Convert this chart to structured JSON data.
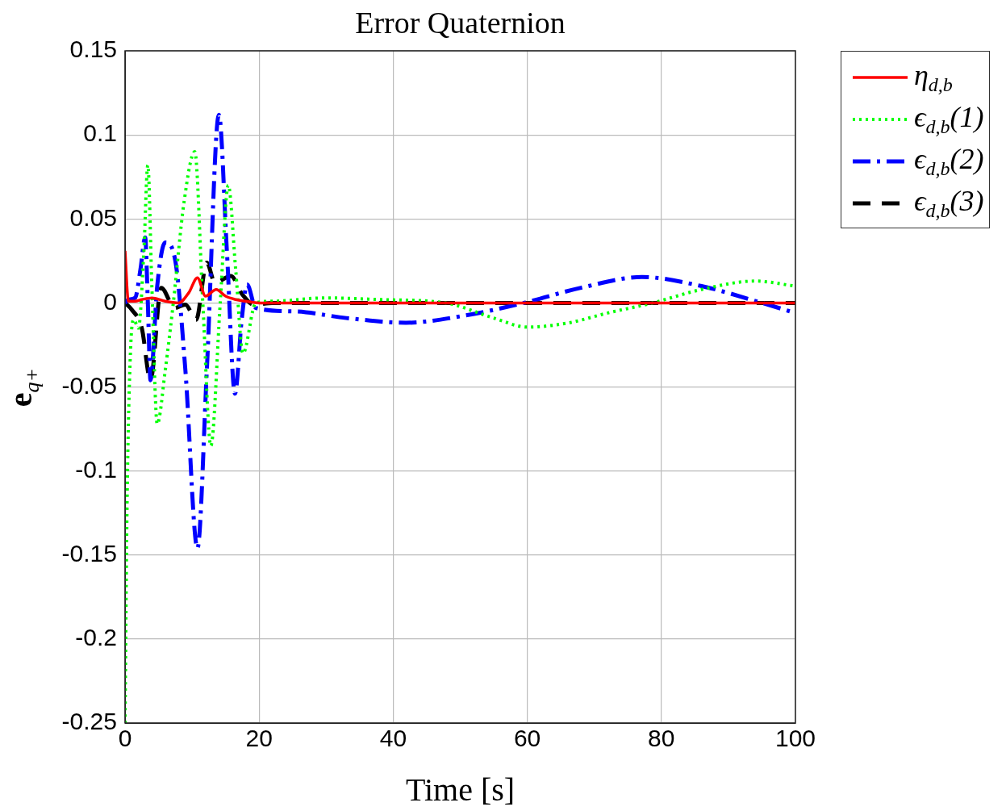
{
  "chart_data": {
    "type": "line",
    "title": "Error Quaternion",
    "xlabel": "Time [s]",
    "ylabel": "e$_{q+}$",
    "xlim": [
      0,
      100
    ],
    "ylim": [
      -0.25,
      0.15
    ],
    "xticks": [
      0,
      20,
      40,
      60,
      80,
      100
    ],
    "yticks": [
      -0.25,
      -0.2,
      -0.15,
      -0.1,
      -0.05,
      0,
      0.05,
      0.1,
      0.15
    ],
    "grid": true,
    "legend": "top right",
    "marker": "none",
    "series": [
      {
        "name": "η$_{d,b}$",
        "color": "#ff0000",
        "line_style": "solid",
        "x": [
          0,
          0.5,
          1.5,
          2.5,
          4,
          6,
          8,
          9.5,
          10.8,
          12,
          13.6,
          15,
          16.5,
          18,
          20,
          40,
          60,
          80,
          100
        ],
        "values": [
          0.031,
          0.001,
          0.001,
          0.002,
          0.003,
          0.001,
          0.0,
          0.006,
          0.015,
          0.004,
          0.008,
          0.004,
          0.002,
          0.001,
          0,
          0,
          0,
          0,
          0
        ]
      },
      {
        "name": "ϵ$_{d,b}$(1)",
        "color": "#00ff00",
        "line_style": "dotted",
        "x": [
          0,
          0.3,
          0.8,
          1.3,
          2,
          2.8,
          3.4,
          4,
          4.8,
          6,
          7.2,
          8.8,
          10.4,
          11.6,
          12.8,
          14.2,
          15.4,
          16.5,
          17.6,
          19.5,
          22,
          30,
          38,
          47.8,
          55,
          60,
          66,
          72,
          78.7,
          86,
          94,
          100
        ],
        "values": [
          -0.25,
          -0.12,
          -0.03,
          -0.01,
          -0.015,
          0.03,
          0.082,
          0.01,
          -0.072,
          -0.04,
          0.0,
          0.06,
          0.09,
          0.0,
          -0.085,
          0.0,
          0.07,
          0.02,
          -0.03,
          0.0,
          0.001,
          0.003,
          0.002,
          0.0,
          -0.009,
          -0.0144,
          -0.012,
          -0.006,
          0.0,
          0.008,
          0.013,
          0.01
        ]
      },
      {
        "name": "ϵ$_{d,b}$(2)",
        "color": "#0000ff",
        "line_style": "dashdot",
        "x": [
          0,
          0.5,
          1.5,
          2.3,
          3,
          3.4,
          3.8,
          4.8,
          6,
          7.5,
          9,
          10.8,
          12.2,
          14,
          15.2,
          16.4,
          17.4,
          18.2,
          19.5,
          25,
          33,
          41.9,
          50,
          59.5,
          68,
          77.1,
          86,
          95,
          100
        ],
        "values": [
          0.0,
          0.002,
          0.003,
          0.02,
          0.039,
          0.0,
          -0.046,
          0.01,
          0.036,
          0.025,
          -0.04,
          -0.146,
          -0.04,
          0.112,
          0.03,
          -0.054,
          -0.01,
          0.011,
          -0.003,
          -0.005,
          -0.009,
          -0.0118,
          -0.008,
          0.0,
          0.009,
          0.0154,
          0.01,
          0.0,
          -0.006
        ]
      },
      {
        "name": "ϵ$_{d,b}$(3)",
        "color": "#000000",
        "line_style": "dashed",
        "x": [
          0,
          1,
          2.5,
          3.8,
          5.4,
          7.4,
          9,
          10.6,
          12.2,
          13.4,
          15.8,
          17.5,
          19.2,
          22,
          40,
          60,
          80,
          100
        ],
        "values": [
          0,
          -0.004,
          -0.015,
          -0.046,
          0.009,
          -0.003,
          -0.001,
          -0.01,
          0.024,
          0.012,
          0.016,
          0.005,
          -0.001,
          0,
          0,
          0,
          0,
          0
        ]
      }
    ]
  }
}
